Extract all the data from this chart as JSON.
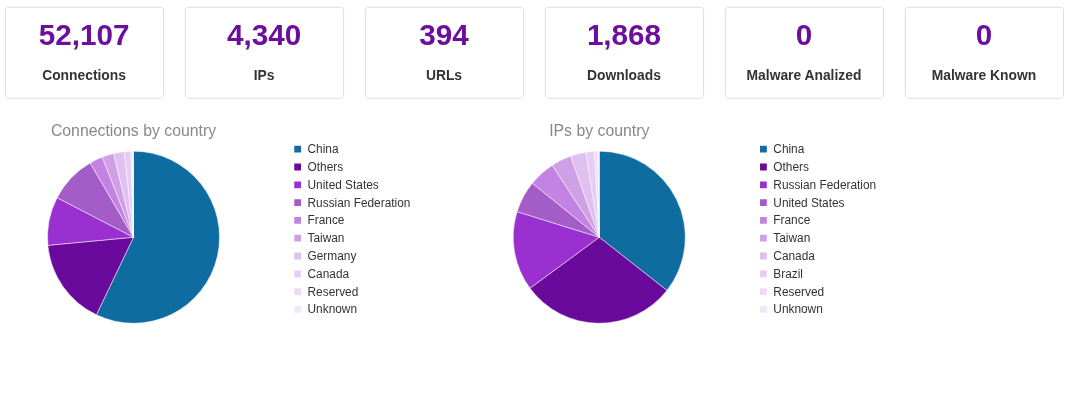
{
  "chart_data": [
    {
      "type": "other",
      "title": "52,107",
      "subtitle": "Connections",
      "color": "#6b0f9c"
    },
    {
      "type": "other",
      "title": "4,340",
      "subtitle": "IPs",
      "color": "#6b0f9c"
    },
    {
      "type": "other",
      "title": "394",
      "subtitle": "URLs",
      "color": "#6b0f9c"
    },
    {
      "type": "other",
      "title": "1,868",
      "subtitle": "Downloads",
      "color": "#6b0f9c"
    },
    {
      "type": "other",
      "title": "0",
      "subtitle": "Malware Analized",
      "color": "#6b0f9c"
    },
    {
      "type": "other",
      "title": "0",
      "subtitle": "Malware Known",
      "color": "#6b0f9c"
    },
    {
      "type": "pie",
      "title": "Connections by country",
      "legend": "right",
      "categories": [
        "China",
        "Others",
        "United States",
        "Russian Federation",
        "France",
        "Taiwan",
        "Germany",
        "Canada",
        "Reserved",
        "Unknown"
      ],
      "values": [
        57.1,
        16.4,
        9.1,
        9.0,
        2.5,
        2.2,
        2.0,
        1.2,
        0.3,
        0.2
      ],
      "colors": [
        "#0f6ca0",
        "#6a0a9c",
        "#9b30d0",
        "#a45cc8",
        "#c283e4",
        "#d0a0e6",
        "#dfc0f0",
        "#e6cdf4",
        "#eed9f8",
        "#f3e6fa"
      ]
    },
    {
      "type": "pie",
      "title": "IPs by country",
      "legend": "right",
      "categories": [
        "China",
        "Others",
        "Russian Federation",
        "United States",
        "France",
        "Taiwan",
        "Canada",
        "Brazil",
        "Reserved",
        "Unknown"
      ],
      "values": [
        35.6,
        29.3,
        14.9,
        6.0,
        5.0,
        3.8,
        2.9,
        1.6,
        0.6,
        0.3
      ],
      "colors": [
        "#0f6ca0",
        "#6a0a9c",
        "#9b30d0",
        "#a45cc8",
        "#c283e4",
        "#d0a0e6",
        "#dfc0f0",
        "#e6cdf4",
        "#eed9f8",
        "#f3e6fa"
      ]
    }
  ]
}
